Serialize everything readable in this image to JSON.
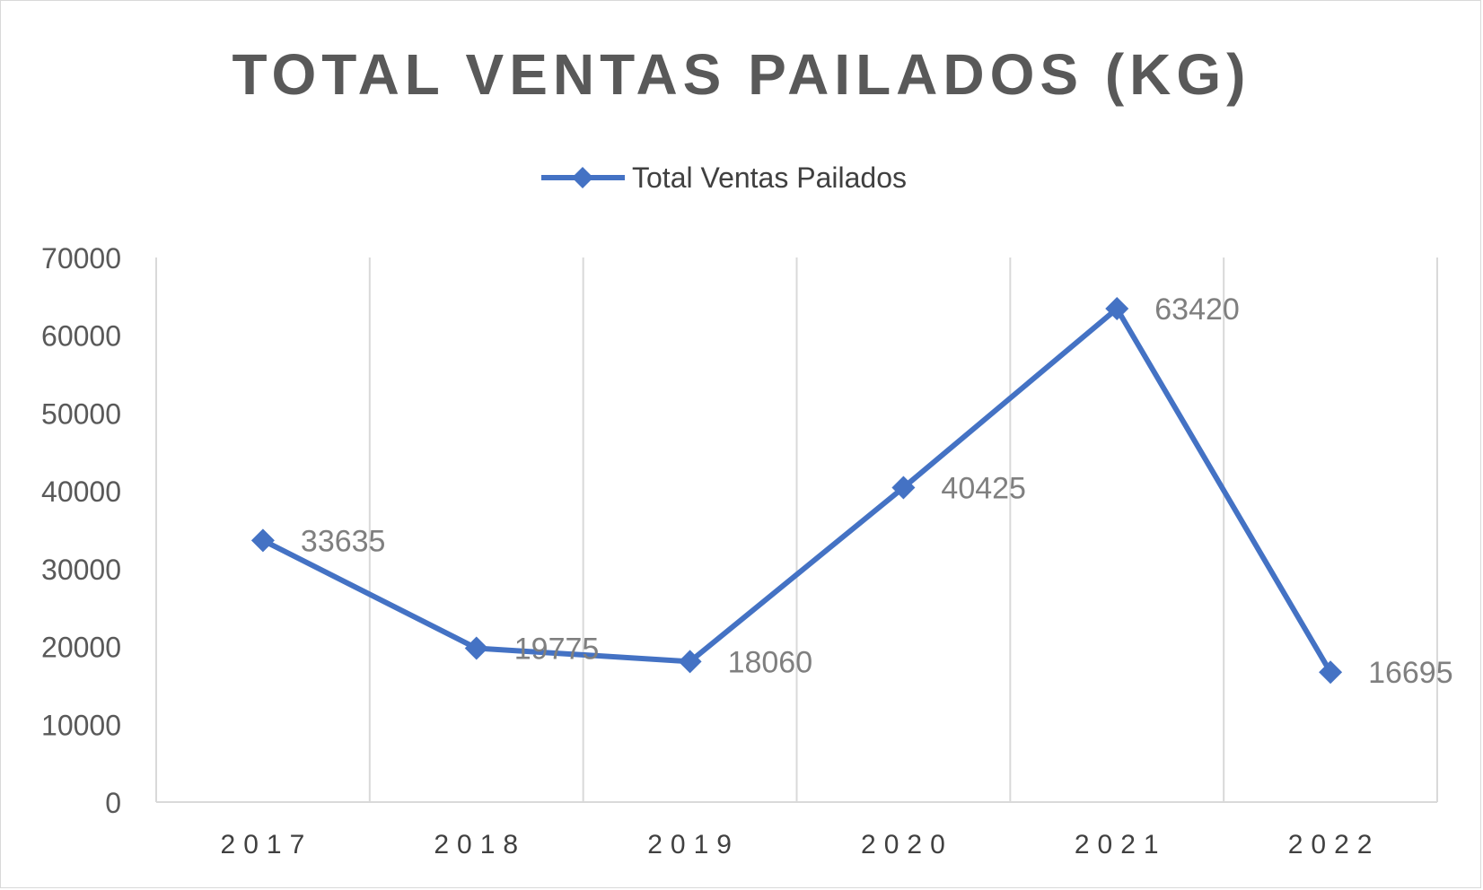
{
  "chart_data": {
    "type": "line",
    "title": "TOTAL VENTAS PAILADOS (KG)",
    "categories": [
      "2017",
      "2018",
      "2019",
      "2020",
      "2021",
      "2022"
    ],
    "series": [
      {
        "name": "Total Ventas Pailados",
        "values": [
          33635,
          19775,
          18060,
          40425,
          63420,
          16695
        ],
        "data_labels": [
          "33635",
          "19775",
          "18060",
          "40425",
          "63420",
          "16695"
        ],
        "color": "#4472C4",
        "marker": "diamond"
      }
    ],
    "ylim": [
      0,
      70000
    ],
    "yticks": [
      0,
      10000,
      20000,
      30000,
      40000,
      50000,
      60000,
      70000
    ],
    "ytick_labels": [
      "0",
      "10000",
      "20000",
      "30000",
      "40000",
      "50000",
      "60000",
      "70000"
    ],
    "xlabel": "",
    "ylabel": "",
    "grid": "vertical",
    "legend_position": "top"
  }
}
